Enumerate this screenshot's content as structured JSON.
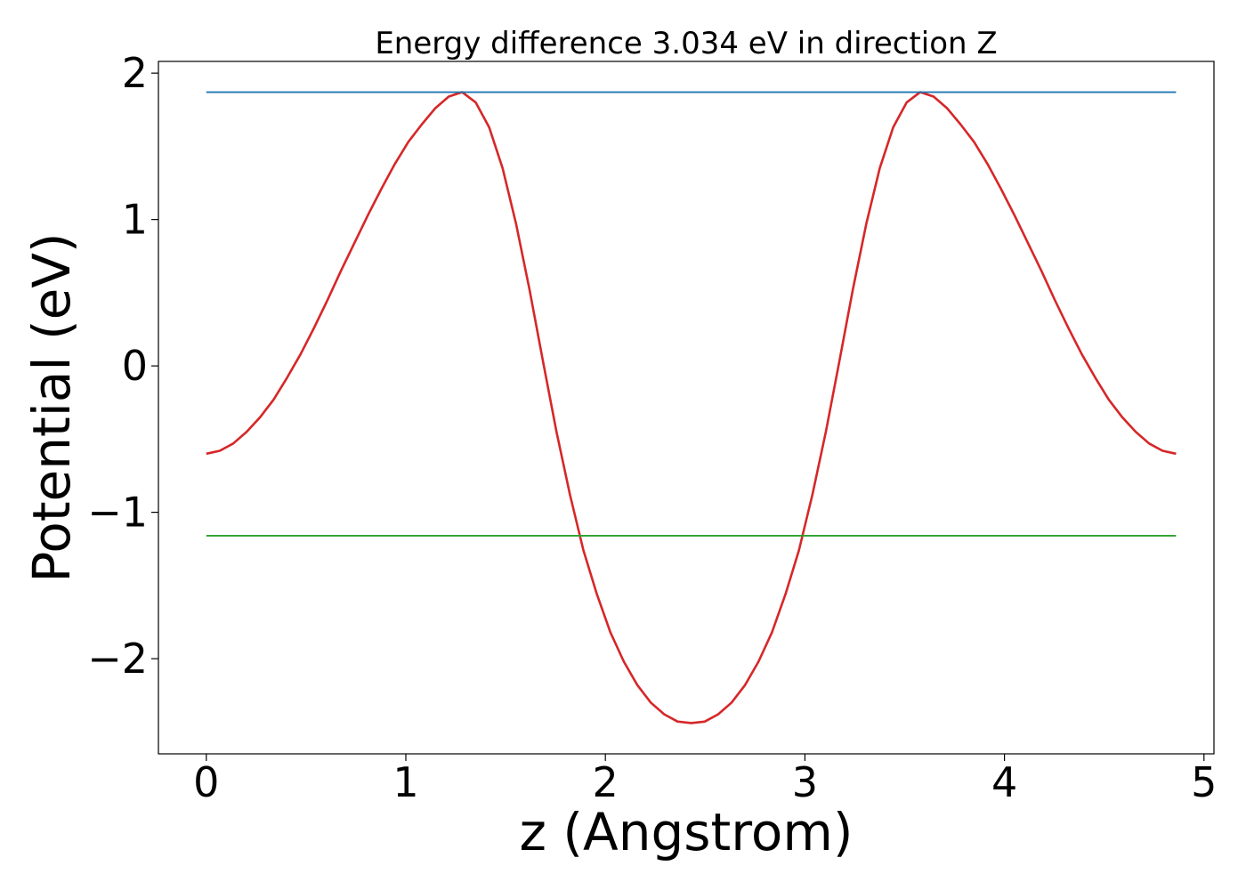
{
  "chart_data": {
    "type": "line",
    "title": "Energy difference 3.034 eV in direction Z",
    "xlabel": "z (Angstrom)",
    "ylabel": "Potential (eV)",
    "xlim": [
      -0.24,
      5.05
    ],
    "ylim": [
      -2.65,
      2.08
    ],
    "xticks": [
      0,
      1,
      2,
      3,
      4,
      5
    ],
    "xtick_labels": [
      "0",
      "1",
      "2",
      "3",
      "4",
      "5"
    ],
    "yticks": [
      -2,
      -1,
      0,
      1,
      2
    ],
    "ytick_labels": [
      "−2",
      "−1",
      "0",
      "1",
      "2"
    ],
    "grid": false,
    "series": [
      {
        "color": "#d62728",
        "x": [
          0.0,
          0.0675,
          0.135,
          0.2025,
          0.27,
          0.3375,
          0.405,
          0.4725,
          0.54,
          0.6075,
          0.675,
          0.7425,
          0.81,
          0.8775,
          0.945,
          1.0125,
          1.08,
          1.1475,
          1.215,
          1.2825,
          1.35,
          1.4175,
          1.485,
          1.5525,
          1.62,
          1.6875,
          1.755,
          1.8225,
          1.89,
          1.9575,
          2.025,
          2.0925,
          2.16,
          2.2275,
          2.295,
          2.3625,
          2.43,
          2.4975,
          2.565,
          2.6325,
          2.7,
          2.7675,
          2.835,
          2.9025,
          2.97,
          3.0375,
          3.105,
          3.1725,
          3.24,
          3.3075,
          3.375,
          3.4425,
          3.51,
          3.5775,
          3.645,
          3.7125,
          3.78,
          3.8475,
          3.915,
          3.9825,
          4.05,
          4.1175,
          4.185,
          4.2525,
          4.32,
          4.3875,
          4.455,
          4.5225,
          4.59,
          4.6575,
          4.725,
          4.7925,
          4.86
        ],
        "y": [
          -0.6,
          -0.58,
          -0.53,
          -0.45,
          -0.35,
          -0.23,
          -0.08,
          0.08,
          0.26,
          0.45,
          0.65,
          0.84,
          1.03,
          1.21,
          1.38,
          1.53,
          1.65,
          1.76,
          1.84,
          1.87,
          1.8,
          1.63,
          1.35,
          0.97,
          0.52,
          0.03,
          -0.45,
          -0.88,
          -1.26,
          -1.56,
          -1.82,
          -2.02,
          -2.18,
          -2.3,
          -2.38,
          -2.43,
          -2.44,
          -2.43,
          -2.38,
          -2.3,
          -2.18,
          -2.02,
          -1.82,
          -1.56,
          -1.26,
          -0.88,
          -0.45,
          0.03,
          0.52,
          0.97,
          1.35,
          1.63,
          1.8,
          1.87,
          1.84,
          1.76,
          1.65,
          1.53,
          1.38,
          1.21,
          1.03,
          0.84,
          0.65,
          0.45,
          0.26,
          0.08,
          -0.08,
          -0.23,
          -0.35,
          -0.45,
          -0.53,
          -0.58,
          -0.6
        ]
      },
      {
        "color": "#1f77b4",
        "x": [
          0.0,
          4.86
        ],
        "y": [
          1.87,
          1.87
        ]
      },
      {
        "color": "#2ca02c",
        "x": [
          0.0,
          4.86
        ],
        "y": [
          -1.16,
          -1.16
        ]
      }
    ]
  }
}
